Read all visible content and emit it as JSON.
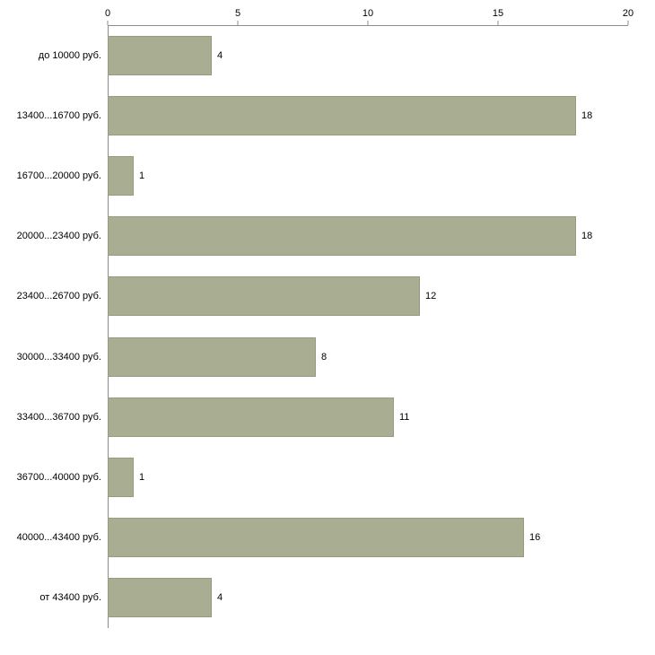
{
  "chart_data": {
    "type": "bar",
    "orientation": "horizontal",
    "title": "",
    "xlabel": "",
    "ylabel": "",
    "categories": [
      "до 10000 руб.",
      "13400...16700 руб.",
      "16700...20000 руб.",
      "20000...23400 руб.",
      "23400...26700 руб.",
      "30000...33400 руб.",
      "33400...36700 руб.",
      "36700...40000 руб.",
      "40000...43400 руб.",
      "от 43400 руб."
    ],
    "values": [
      4,
      18,
      1,
      18,
      12,
      8,
      11,
      1,
      16,
      4
    ],
    "x_ticks": [
      0,
      5,
      10,
      15,
      20
    ],
    "xlim": [
      0,
      20
    ],
    "grid": false,
    "legend": null,
    "colors": {
      "bar": "#a9ae93",
      "bar_border": "#979c81",
      "axis": "#8c8c8c",
      "text": "#000000",
      "background": "#ffffff"
    }
  }
}
